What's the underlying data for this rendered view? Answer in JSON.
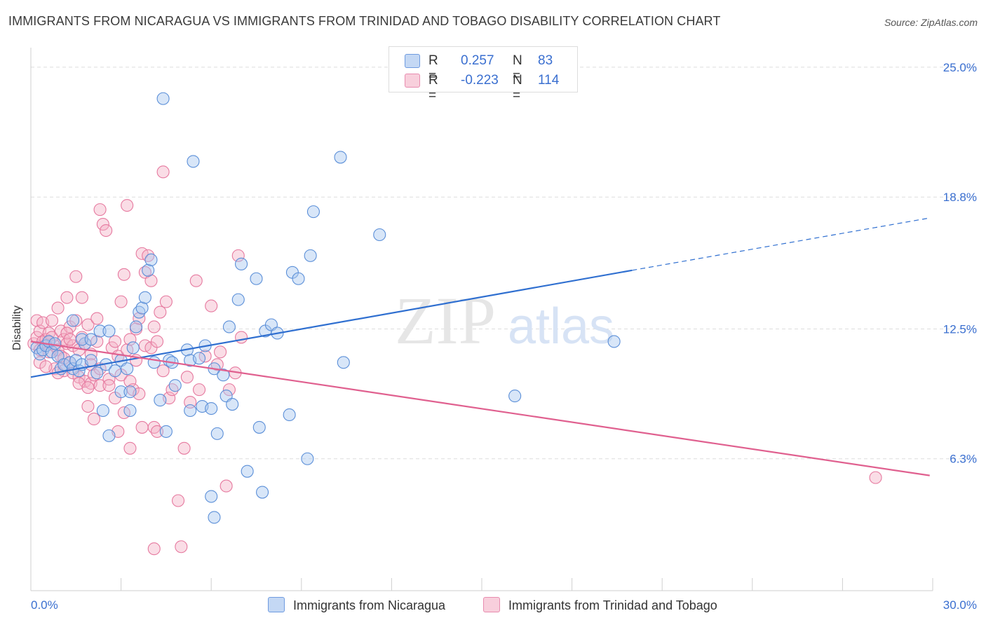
{
  "title": "IMMIGRANTS FROM NICARAGUA VS IMMIGRANTS FROM TRINIDAD AND TOBAGO DISABILITY CORRELATION CHART",
  "source": "Source: ZipAtlas.com",
  "watermark": {
    "zip": "ZIP",
    "atlas": "atlas"
  },
  "legend": {
    "rows": [
      {
        "r_label": "R =",
        "r_value": "0.257",
        "n_label": "N =",
        "n_value": "83"
      },
      {
        "r_label": "R =",
        "r_value": "-0.223",
        "n_label": "N =",
        "n_value": "114"
      }
    ]
  },
  "colors": {
    "blue_fill": "#a9c7f0",
    "blue_stroke": "#5b8fd8",
    "blue_line": "#2f6fd0",
    "pink_fill": "#f5b3c8",
    "pink_stroke": "#e6799f",
    "pink_line": "#e0608f",
    "axis_label": "#3a6fd0",
    "grid": "#dddddd"
  },
  "chart_data": {
    "type": "scatter",
    "title": "IMMIGRANTS FROM NICARAGUA VS IMMIGRANTS FROM TRINIDAD AND TOBAGO DISABILITY CORRELATION CHART",
    "xlabel": "",
    "ylabel": "Disability",
    "xlim": [
      0,
      30
    ],
    "ylim": [
      0,
      25.6
    ],
    "x_ticks": [
      "0.0%",
      "30.0%"
    ],
    "y_ticks": [
      {
        "value": 6.3,
        "label": "6.3%"
      },
      {
        "value": 12.5,
        "label": "12.5%"
      },
      {
        "value": 18.8,
        "label": "18.8%"
      },
      {
        "value": 25.0,
        "label": "25.0%"
      }
    ],
    "grid": true,
    "legend_position": "bottom",
    "series": [
      {
        "name": "Immigrants from Nicaragua",
        "trend": {
          "x0": 0,
          "y0": 10.2,
          "x1": 20.0,
          "y1": 15.3,
          "dashed_to_x": 29.9,
          "dashed_to_y": 17.8
        },
        "points": [
          [
            0.2,
            11.6
          ],
          [
            0.3,
            11.3
          ],
          [
            0.4,
            11.5
          ],
          [
            0.5,
            11.7
          ],
          [
            0.6,
            11.9
          ],
          [
            0.7,
            11.4
          ],
          [
            0.8,
            11.8
          ],
          [
            0.9,
            11.2
          ],
          [
            1.0,
            10.6
          ],
          [
            1.1,
            10.8
          ],
          [
            1.3,
            10.9
          ],
          [
            1.4,
            10.6
          ],
          [
            1.5,
            11.0
          ],
          [
            1.6,
            10.5
          ],
          [
            1.7,
            10.8
          ],
          [
            1.8,
            11.8
          ],
          [
            2.0,
            11.0
          ],
          [
            2.2,
            10.4
          ],
          [
            2.5,
            10.8
          ],
          [
            2.8,
            10.5
          ],
          [
            1.4,
            12.9
          ],
          [
            1.7,
            12.0
          ],
          [
            2.0,
            12.0
          ],
          [
            2.3,
            12.4
          ],
          [
            2.6,
            12.4
          ],
          [
            3.0,
            11.0
          ],
          [
            3.2,
            10.6
          ],
          [
            3.0,
            9.5
          ],
          [
            3.3,
            9.5
          ],
          [
            3.5,
            12.6
          ],
          [
            3.6,
            13.3
          ],
          [
            3.7,
            13.5
          ],
          [
            3.8,
            14.0
          ],
          [
            3.9,
            15.3
          ],
          [
            4.0,
            15.8
          ],
          [
            3.4,
            11.6
          ],
          [
            4.1,
            10.9
          ],
          [
            4.3,
            9.1
          ],
          [
            4.5,
            7.6
          ],
          [
            4.8,
            9.8
          ],
          [
            4.6,
            11.0
          ],
          [
            4.7,
            10.9
          ],
          [
            5.2,
            11.5
          ],
          [
            5.3,
            11.0
          ],
          [
            5.6,
            11.1
          ],
          [
            5.3,
            8.6
          ],
          [
            5.7,
            8.8
          ],
          [
            5.8,
            11.7
          ],
          [
            6.0,
            8.7
          ],
          [
            6.1,
            10.6
          ],
          [
            6.0,
            4.5
          ],
          [
            6.1,
            3.5
          ],
          [
            6.2,
            7.5
          ],
          [
            6.4,
            10.3
          ],
          [
            6.5,
            9.3
          ],
          [
            6.6,
            12.6
          ],
          [
            6.7,
            8.9
          ],
          [
            6.9,
            13.9
          ],
          [
            7.0,
            15.6
          ],
          [
            7.2,
            5.7
          ],
          [
            7.5,
            14.9
          ],
          [
            7.6,
            7.8
          ],
          [
            7.7,
            4.7
          ],
          [
            7.8,
            12.4
          ],
          [
            8.0,
            12.7
          ],
          [
            8.2,
            12.3
          ],
          [
            8.6,
            8.4
          ],
          [
            8.7,
            15.2
          ],
          [
            8.9,
            14.9
          ],
          [
            9.2,
            6.3
          ],
          [
            9.3,
            16.0
          ],
          [
            9.4,
            18.1
          ],
          [
            10.3,
            20.7
          ],
          [
            10.4,
            10.9
          ],
          [
            11.6,
            17.0
          ],
          [
            13.3,
            24.3
          ],
          [
            16.1,
            9.3
          ],
          [
            19.4,
            11.9
          ],
          [
            4.4,
            23.5
          ],
          [
            5.4,
            20.5
          ],
          [
            2.4,
            8.6
          ],
          [
            2.6,
            7.4
          ],
          [
            3.3,
            8.6
          ]
        ]
      },
      {
        "name": "Immigrants from Trinidad and Tobago",
        "trend": {
          "x0": 0,
          "y0": 11.9,
          "x1": 29.9,
          "y1": 5.5
        },
        "points": [
          [
            0.1,
            11.8
          ],
          [
            0.2,
            12.1
          ],
          [
            0.2,
            12.9
          ],
          [
            0.3,
            11.5
          ],
          [
            0.3,
            12.4
          ],
          [
            0.4,
            11.9
          ],
          [
            0.4,
            12.8
          ],
          [
            0.5,
            11.7
          ],
          [
            0.5,
            12.0
          ],
          [
            0.6,
            12.3
          ],
          [
            0.6,
            11.4
          ],
          [
            0.7,
            12.1
          ],
          [
            0.7,
            12.9
          ],
          [
            0.8,
            11.7
          ],
          [
            0.8,
            10.6
          ],
          [
            0.9,
            11.5
          ],
          [
            0.9,
            13.5
          ],
          [
            1.0,
            12.4
          ],
          [
            1.0,
            11.2
          ],
          [
            1.1,
            12.0
          ],
          [
            1.1,
            10.5
          ],
          [
            1.2,
            14.0
          ],
          [
            1.2,
            11.8
          ],
          [
            1.3,
            12.6
          ],
          [
            1.3,
            10.9
          ],
          [
            1.4,
            11.7
          ],
          [
            1.4,
            10.4
          ],
          [
            1.5,
            12.9
          ],
          [
            1.5,
            15.0
          ],
          [
            1.6,
            11.5
          ],
          [
            1.6,
            10.2
          ],
          [
            1.7,
            12.1
          ],
          [
            1.7,
            14.0
          ],
          [
            1.8,
            11.8
          ],
          [
            1.8,
            10.0
          ],
          [
            1.9,
            12.7
          ],
          [
            1.9,
            8.8
          ],
          [
            2.0,
            11.3
          ],
          [
            2.0,
            9.9
          ],
          [
            2.1,
            8.2
          ],
          [
            2.1,
            10.3
          ],
          [
            2.2,
            11.9
          ],
          [
            2.2,
            13.0
          ],
          [
            2.3,
            9.8
          ],
          [
            2.3,
            10.6
          ],
          [
            2.4,
            17.5
          ],
          [
            2.5,
            17.2
          ],
          [
            2.6,
            10.1
          ],
          [
            2.7,
            11.6
          ],
          [
            2.8,
            11.9
          ],
          [
            2.8,
            9.2
          ],
          [
            2.9,
            11.2
          ],
          [
            3.0,
            10.3
          ],
          [
            3.0,
            13.8
          ],
          [
            3.1,
            15.1
          ],
          [
            3.2,
            11.5
          ],
          [
            3.3,
            10.0
          ],
          [
            3.3,
            12.0
          ],
          [
            3.4,
            9.6
          ],
          [
            3.5,
            11.0
          ],
          [
            3.5,
            12.5
          ],
          [
            3.6,
            13.0
          ],
          [
            3.7,
            16.1
          ],
          [
            3.8,
            15.2
          ],
          [
            3.8,
            11.7
          ],
          [
            3.9,
            16.0
          ],
          [
            4.0,
            14.8
          ],
          [
            4.0,
            11.6
          ],
          [
            4.1,
            12.6
          ],
          [
            4.2,
            11.9
          ],
          [
            4.3,
            13.3
          ],
          [
            4.4,
            20.0
          ],
          [
            4.4,
            10.5
          ],
          [
            4.5,
            13.8
          ],
          [
            4.6,
            9.2
          ],
          [
            4.7,
            9.6
          ],
          [
            4.9,
            4.3
          ],
          [
            5.0,
            2.1
          ],
          [
            5.1,
            6.8
          ],
          [
            5.2,
            10.2
          ],
          [
            5.3,
            9.0
          ],
          [
            5.5,
            14.8
          ],
          [
            5.6,
            9.6
          ],
          [
            5.8,
            11.2
          ],
          [
            6.0,
            13.6
          ],
          [
            6.2,
            10.8
          ],
          [
            6.3,
            11.4
          ],
          [
            6.5,
            5.0
          ],
          [
            6.6,
            9.6
          ],
          [
            6.8,
            10.4
          ],
          [
            6.9,
            16.0
          ],
          [
            7.0,
            12.1
          ],
          [
            3.2,
            18.4
          ],
          [
            2.3,
            18.2
          ],
          [
            4.1,
            7.8
          ],
          [
            3.6,
            9.4
          ],
          [
            2.0,
            10.8
          ],
          [
            1.6,
            9.9
          ],
          [
            1.2,
            12.3
          ],
          [
            0.9,
            10.4
          ],
          [
            4.1,
            2.0
          ],
          [
            3.3,
            6.8
          ],
          [
            2.9,
            7.6
          ],
          [
            3.1,
            8.5
          ],
          [
            3.7,
            7.8
          ],
          [
            4.2,
            7.6
          ],
          [
            2.6,
            9.8
          ],
          [
            1.9,
            9.7
          ],
          [
            1.3,
            12.0
          ],
          [
            0.6,
            11.9
          ],
          [
            0.3,
            10.9
          ],
          [
            0.5,
            10.7
          ],
          [
            1.1,
            11.1
          ],
          [
            28.1,
            5.4
          ]
        ]
      }
    ]
  },
  "bottom_legend": {
    "items": [
      {
        "label": "Immigrants from Nicaragua"
      },
      {
        "label": "Immigrants from Trinidad and Tobago"
      }
    ]
  }
}
